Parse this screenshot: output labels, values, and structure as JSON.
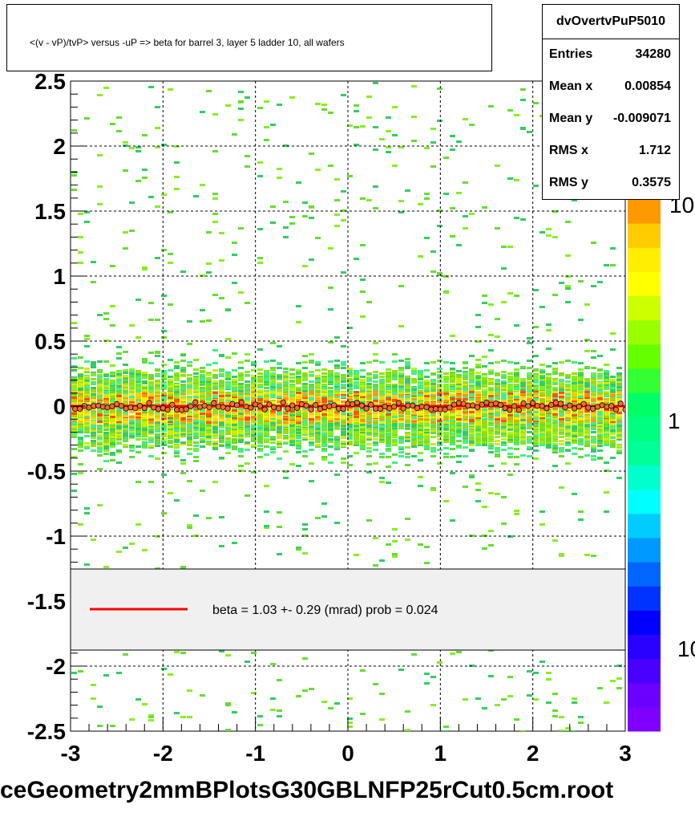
{
  "title": "<(v - vP)/tvP> versus  -uP => beta for barrel 3, layer 5 ladder 10, all wafers",
  "stats": {
    "name": "dvOvertvPuP5010",
    "rows": [
      {
        "label": "Entries",
        "value": "34280"
      },
      {
        "label": "Mean x",
        "value": "0.00854"
      },
      {
        "label": "Mean y",
        "value": "-0.009071"
      },
      {
        "label": "RMS x",
        "value": "1.712"
      },
      {
        "label": "RMS y",
        "value": "0.3575"
      }
    ]
  },
  "legend": {
    "text": "beta =    1.03 +-  0.29 (mrad) prob = 0.024",
    "line_color": "#ff0000"
  },
  "file_label": "ceGeometry2mmBPlotsG30GBLNFP25rCut0.5cm.root",
  "colorbar": {
    "labels": [
      "10",
      "1",
      "10"
    ]
  },
  "chart_data": {
    "type": "heatmap",
    "title": "<(v - vP)/tvP> versus  -uP => beta for barrel 3, layer 5 ladder 10, all wafers",
    "xlim": [
      -3,
      3
    ],
    "ylim": [
      -2.5,
      2.5
    ],
    "xticks": [
      "-3",
      "-2",
      "-1",
      "0",
      "1",
      "2",
      "3"
    ],
    "yticks": [
      "2.5",
      "2",
      "1.5",
      "1",
      "0.5",
      "0",
      "-0.5",
      "-1",
      "-1.5",
      "-2",
      "-2.5"
    ],
    "grid": true,
    "profile_y": 0.0,
    "fit_line": {
      "slope_mrad": 1.03,
      "error_mrad": 0.29,
      "prob": 0.024
    },
    "entries": 34280,
    "mean_x": 0.00854,
    "mean_y": -0.009071,
    "rms_x": 1.712,
    "rms_y": 0.3575,
    "colors": {
      "low": "#8000ff",
      "mid": "#00ff80",
      "high": "#ff4000"
    }
  }
}
